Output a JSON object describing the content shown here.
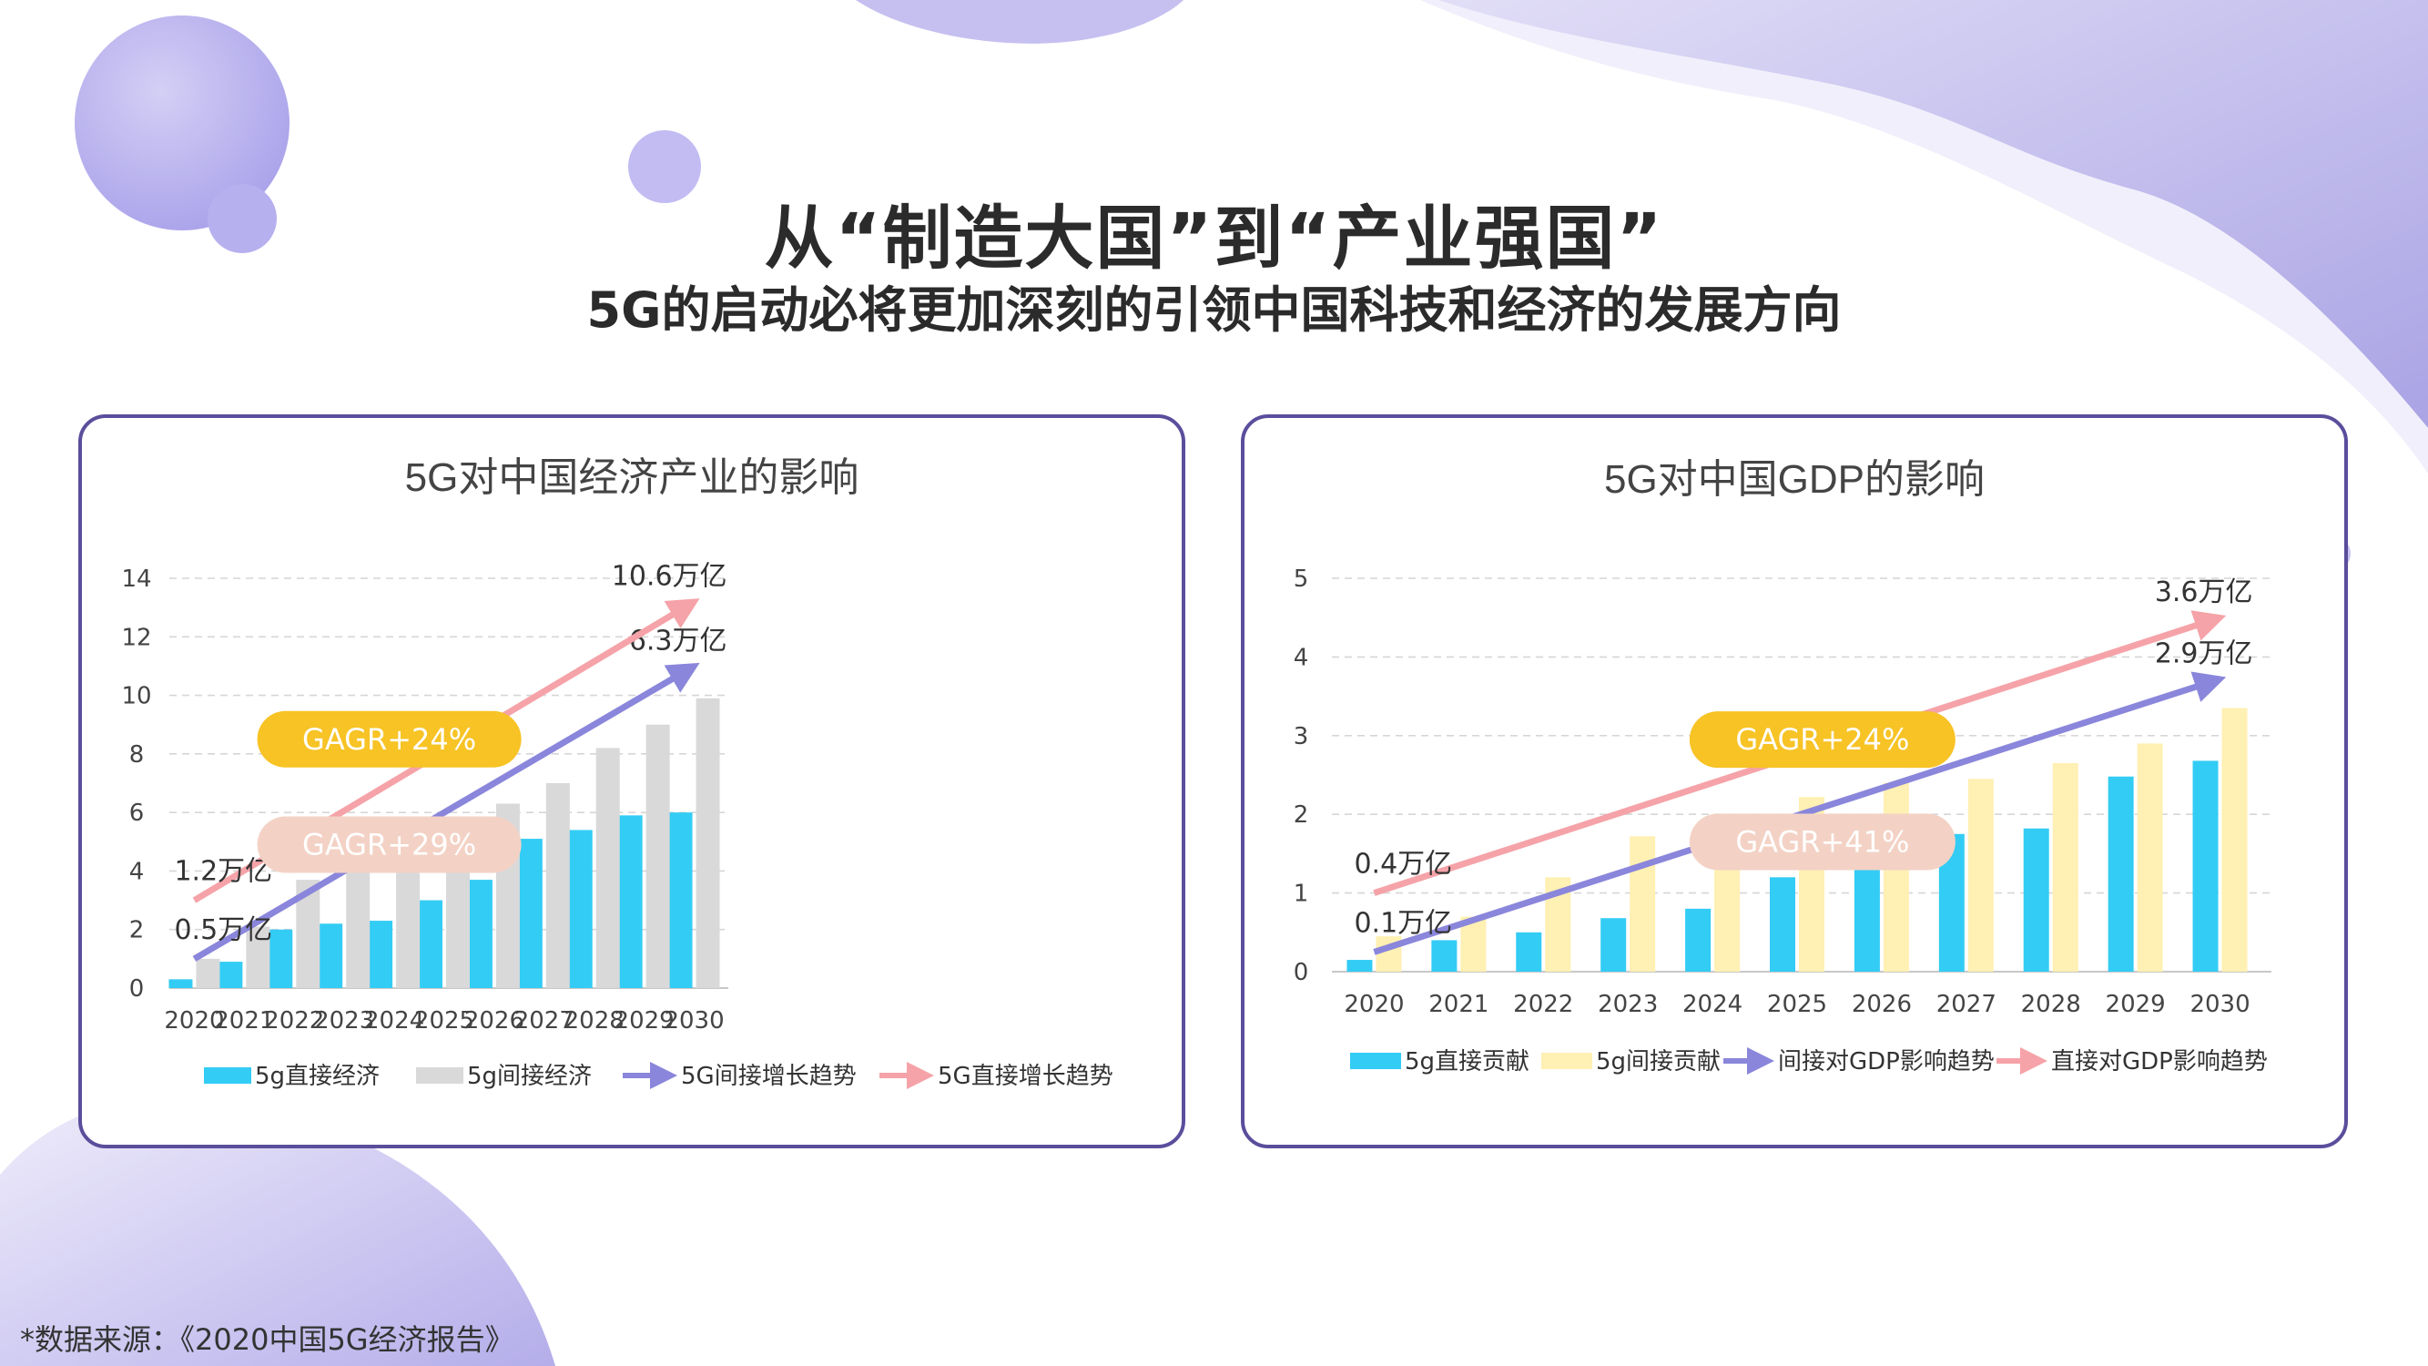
{
  "page": {
    "title": "从“制造大国”到“产业强国”",
    "subtitle": "5G的启动必将更加深刻的引领中国科技和经济的发展方向",
    "footnote": "*数据来源：《2020中国5G经济报告》"
  },
  "colors": {
    "cyan": "#33ccf5",
    "gray": "#d9d9d9",
    "cream": "#fff0b3",
    "blue_arrow": "#8a86db",
    "pink_arrow": "#f5a3a8",
    "gold_badge": "#f7c325",
    "peach_badge": "#f3d2c5",
    "panel_border": "#5a4e9c"
  },
  "chart_data": [
    {
      "type": "bar",
      "title": "5G对中国经济产业的影响",
      "categories": [
        "2020",
        "2021",
        "2022",
        "2023",
        "2024",
        "2025",
        "2026",
        "2027",
        "2028",
        "2029",
        "2030"
      ],
      "ylim": [
        0,
        14
      ],
      "yticks": [
        "0",
        "2",
        "4",
        "6",
        "8",
        "10",
        "12",
        "14"
      ],
      "ytick_values": [
        0,
        2,
        4,
        6,
        8,
        10,
        12,
        14
      ],
      "series": [
        {
          "name": "5g直接经济",
          "color": "#33ccf5",
          "values": [
            0.3,
            0.9,
            2.0,
            2.2,
            2.3,
            3.0,
            3.7,
            5.1,
            5.4,
            5.9,
            6.0
          ]
        },
        {
          "name": "5g间接经济",
          "color": "#d9d9d9",
          "values": [
            1.0,
            2.1,
            3.7,
            4.1,
            4.4,
            5.8,
            6.3,
            7.0,
            8.2,
            9.0,
            9.9
          ]
        }
      ],
      "trends": [
        {
          "name": "5G间接增长趋势",
          "color": "#8a86db",
          "from": 1.0,
          "to": 11.0,
          "start_label": "0.5万亿",
          "end_label": "6.3万亿"
        },
        {
          "name": "5G直接增长趋势",
          "color": "#f5a3a8",
          "from": 3.0,
          "to": 13.2,
          "start_label": "1.2万亿",
          "end_label": "10.6万亿"
        }
      ],
      "badges": [
        {
          "text": "GAGR+24%",
          "color": "#f7c325",
          "anchor_index": 3.9,
          "anchor_value": 8.5
        },
        {
          "text": "GAGR+29%",
          "color": "#f3d2c5",
          "anchor_index": 3.9,
          "anchor_value": 4.9
        }
      ]
    },
    {
      "type": "bar",
      "title": "5G对中国GDP的影响",
      "categories": [
        "2020",
        "2021",
        "2022",
        "2023",
        "2024",
        "2025",
        "2026",
        "2027",
        "2028",
        "2029",
        "2030"
      ],
      "ylim": [
        0,
        5
      ],
      "yticks": [
        "0",
        "1",
        "2",
        "3",
        "4",
        "5"
      ],
      "ytick_values": [
        0,
        1,
        2,
        3,
        4,
        5
      ],
      "series": [
        {
          "name": "5g直接贡献",
          "color": "#33ccf5",
          "values": [
            0.15,
            0.4,
            0.5,
            0.68,
            0.8,
            1.2,
            1.35,
            1.75,
            1.82,
            2.48,
            2.68
          ]
        },
        {
          "name": "5g间接贡献",
          "color": "#fff0b3",
          "values": [
            0.45,
            0.7,
            1.2,
            1.72,
            1.75,
            2.22,
            2.4,
            2.45,
            2.65,
            2.9,
            3.35
          ]
        }
      ],
      "trends": [
        {
          "name": "间接对GDP影响趋势",
          "color": "#8a86db",
          "from": 0.25,
          "to": 3.72,
          "start_label": "0.1万亿",
          "end_label": "2.9万亿"
        },
        {
          "name": "直接对GDP影响趋势",
          "color": "#f5a3a8",
          "from": 1.0,
          "to": 4.5,
          "start_label": "0.4万亿",
          "end_label": "3.6万亿"
        }
      ],
      "badges": [
        {
          "text": "GAGR+24%",
          "color": "#f7c325",
          "anchor_index": 5.3,
          "anchor_value": 2.95
        },
        {
          "text": "GAGR+41%",
          "color": "#f3d2c5",
          "anchor_index": 5.3,
          "anchor_value": 1.65
        }
      ]
    }
  ]
}
